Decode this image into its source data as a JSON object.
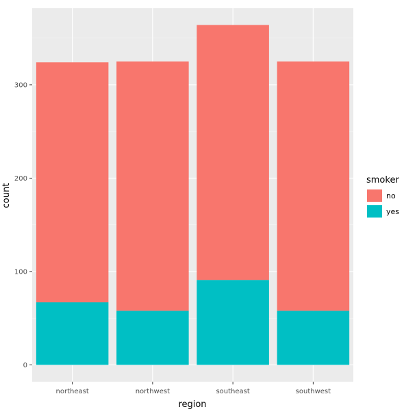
{
  "chart_data": {
    "type": "bar",
    "stacked": true,
    "categories": [
      "northeast",
      "northwest",
      "southeast",
      "southwest"
    ],
    "series": [
      {
        "name": "no",
        "color": "#F8766D",
        "values": [
          257,
          267,
          273,
          267
        ]
      },
      {
        "name": "yes",
        "color": "#00BFC4",
        "values": [
          67,
          58,
          91,
          58
        ]
      }
    ],
    "xlabel": "region",
    "ylabel": "count",
    "yticks": [
      0,
      100,
      200,
      300
    ],
    "ylim": [
      -18,
      382
    ],
    "grid": true,
    "panel_background": "#EBEBEB",
    "legend": {
      "title": "smoker",
      "position": "right",
      "items": [
        "no",
        "yes"
      ]
    }
  }
}
